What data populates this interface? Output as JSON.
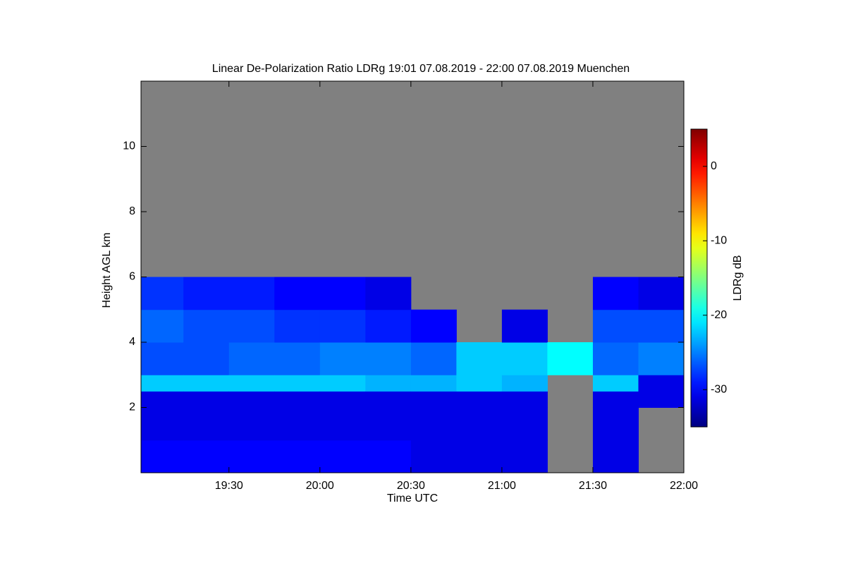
{
  "chart_data": {
    "type": "heatmap",
    "title": "Linear De-Polarization Ratio LDRg   19:01 07.08.2019 - 22:00 07.08.2019 Muenchen",
    "x_label": "Time UTC",
    "y_label": "Height AGL km",
    "colorbar_label": "LDRg dB",
    "x_bins": [
      19.0167,
      19.25,
      19.5,
      19.75,
      20,
      20.25,
      20.5,
      20.75,
      21,
      21.25,
      21.5,
      21.75,
      22
    ],
    "y_bins": [
      0,
      1,
      2,
      2.5,
      3,
      4,
      5,
      6,
      12
    ],
    "z": [
      [
        -30,
        -31,
        -31,
        -22,
        -27,
        -26,
        -28,
        null
      ],
      [
        -30,
        -31,
        -31,
        -22,
        -27,
        -27,
        -29,
        null
      ],
      [
        -30,
        -31,
        -31,
        -22,
        -26,
        -27,
        -29,
        null
      ],
      [
        -30,
        -31,
        -31,
        -22,
        -26,
        -28,
        -30,
        null
      ],
      [
        -30,
        -31,
        -31,
        -22,
        -25,
        -28,
        -30,
        null
      ],
      [
        -30,
        -31,
        -31,
        -23,
        -25,
        -29,
        -31,
        null
      ],
      [
        -31,
        -31,
        -31,
        -23,
        -26,
        -30,
        null,
        null
      ],
      [
        -31,
        -31,
        -31,
        -22,
        -22,
        null,
        null,
        null
      ],
      [
        -31,
        -31,
        -31,
        -23,
        -22,
        -31,
        null,
        null
      ],
      [
        null,
        null,
        null,
        null,
        -20,
        null,
        null,
        null
      ],
      [
        -31,
        -31,
        -31,
        -22,
        -26,
        -27,
        -30,
        null
      ],
      [
        null,
        null,
        -31,
        -31,
        -25,
        -27,
        -31,
        null
      ]
    ],
    "xlim": [
      19.0167,
      22.0
    ],
    "xticks": [
      {
        "value": 19.5,
        "label": "19:30"
      },
      {
        "value": 20,
        "label": "20:00"
      },
      {
        "value": 20.5,
        "label": "20:30"
      },
      {
        "value": 21,
        "label": "21:00"
      },
      {
        "value": 21.5,
        "label": "21:30"
      },
      {
        "value": 22,
        "label": "22:00"
      }
    ],
    "ylim": [
      0,
      12
    ],
    "yticks": [
      2,
      4,
      6,
      8,
      10
    ],
    "zlim": [
      -35,
      5
    ],
    "zticks": [
      0,
      -10,
      -20,
      -30
    ],
    "colormap": "jet",
    "nodata_color": "#808080"
  }
}
